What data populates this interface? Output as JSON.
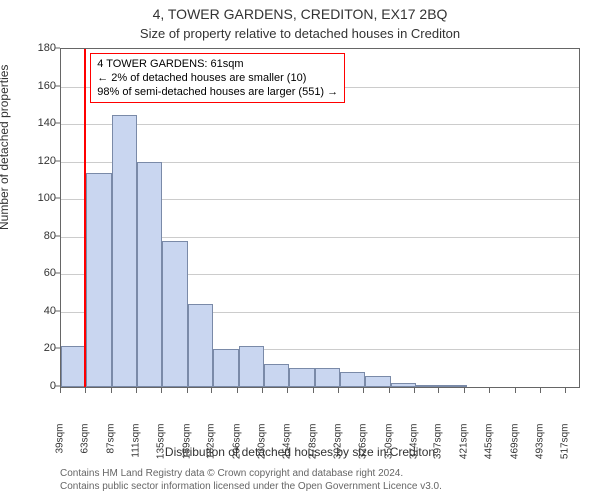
{
  "title_main": "4, TOWER GARDENS, CREDITON, EX17 2BQ",
  "title_sub": "Size of property relative to detached houses in Crediton",
  "ylabel": "Number of detached properties",
  "xlabel": "Distribution of detached houses by size in Crediton",
  "chart": {
    "type": "histogram",
    "background_color": "#ffffff",
    "border_color": "#666666",
    "grid_color": "#cccccc",
    "text_color": "#333333",
    "bar_fill": "#c9d6f0",
    "bar_border": "#7a8aa8",
    "marker_color": "#ff0000",
    "marker_position": 61,
    "ylim": [
      0,
      180
    ],
    "ytick_step": 20,
    "yticks": [
      0,
      20,
      40,
      60,
      80,
      100,
      120,
      140,
      160,
      180
    ],
    "xlim": [
      39,
      529
    ],
    "xticks": [
      39,
      63,
      87,
      111,
      135,
      159,
      182,
      206,
      230,
      254,
      278,
      302,
      326,
      350,
      374,
      397,
      421,
      445,
      469,
      493,
      517
    ],
    "xtick_suffix": "sqm",
    "bin_width": 24,
    "bin_start": 39,
    "values": [
      22,
      114,
      145,
      120,
      78,
      44,
      20,
      22,
      12,
      10,
      10,
      8,
      6,
      2,
      1,
      1,
      0,
      0,
      0,
      0,
      0
    ],
    "label_fontsize": 12,
    "tick_fontsize": 11,
    "title_fontsize": 14
  },
  "info_box": {
    "border_color": "#ff0000",
    "lines": [
      "4 TOWER GARDENS: 61sqm",
      "← 2% of detached houses are smaller (10)",
      "98% of semi-detached houses are larger (551) →"
    ]
  },
  "footer": {
    "line1": "Contains HM Land Registry data © Crown copyright and database right 2024.",
    "line2": "Contains public sector information licensed under the Open Government Licence v3.0."
  }
}
